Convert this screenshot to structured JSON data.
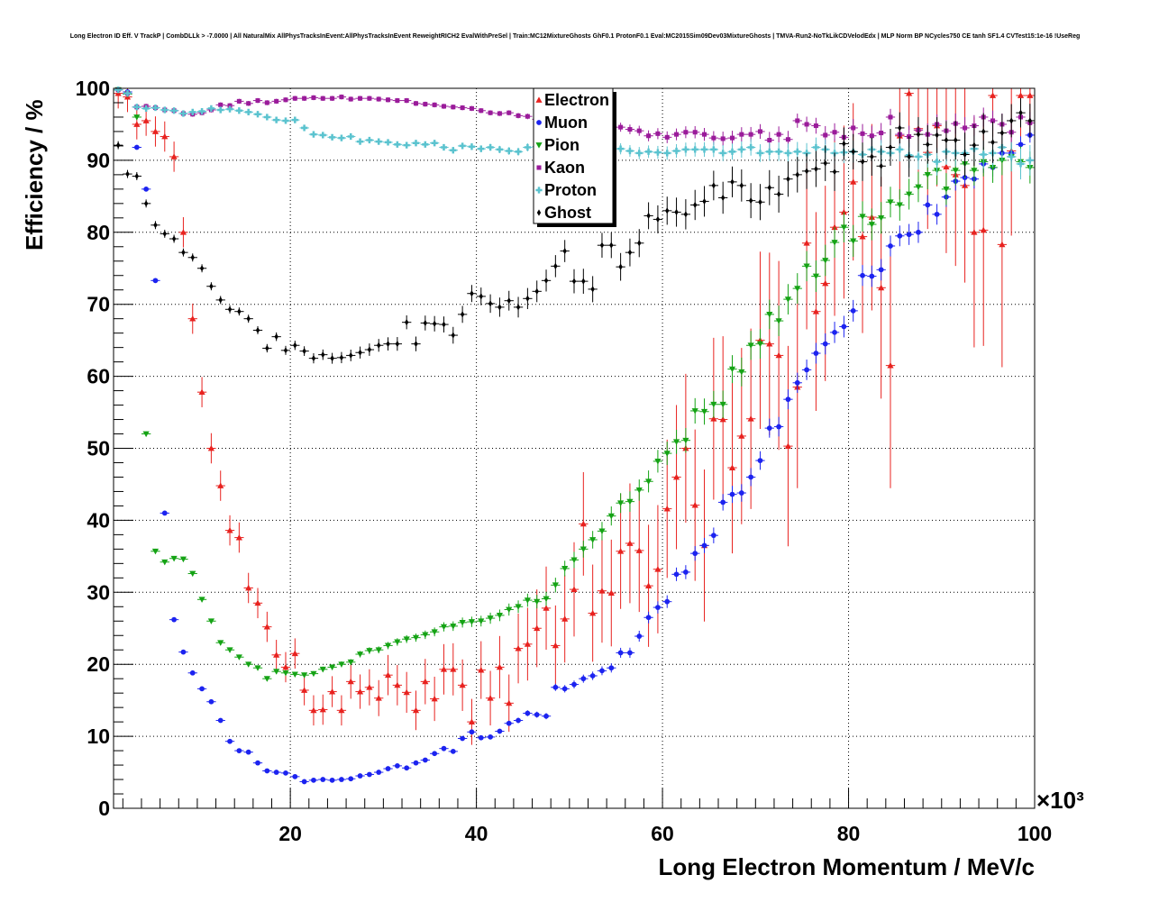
{
  "chart_data": {
    "type": "scatter",
    "title": "Long Electron ID Eff. V TrackP | CombDLLk > -7.0000 | All NaturalMix AllPhysTracksInEvent:AllPhysTracksInEvent ReweightRICH2 EvalWithPreSel | Train:MC12MixtureGhosts GhF0.1 ProtonF0.1 Eval:MC2015Sim09Dev03MixtureGhosts | TMVA-Run2-NoTkLikCDVelodEdx | MLP Norm BP NCycles750 CE tanh SF1.4 CVTest15:1e-16 !UseReg",
    "xlabel": "Long Electron Momentum / MeV/c",
    "ylabel": "Efficiency / %",
    "x_multiplier": "×10³",
    "xlim": [
      1000,
      100000
    ],
    "ylim": [
      0,
      100
    ],
    "x_ticks": [
      20,
      40,
      60,
      80,
      100
    ],
    "y_ticks": [
      0,
      10,
      20,
      30,
      40,
      50,
      60,
      70,
      80,
      90,
      100
    ],
    "grid": true,
    "legend_position": "top-center",
    "x": [
      1.5,
      2.5,
      3.5,
      4.5,
      5.5,
      6.5,
      7.5,
      8.5,
      9.5,
      10.5,
      11.5,
      12.5,
      13.5,
      14.5,
      15.5,
      16.5,
      17.5,
      18.5,
      19.5,
      20.5,
      21.5,
      22.5,
      23.5,
      24.5,
      25.5,
      26.5,
      27.5,
      28.5,
      29.5,
      30.5,
      31.5,
      32.5,
      33.5,
      34.5,
      35.5,
      36.5,
      37.5,
      38.5,
      39.5,
      40.5,
      41.5,
      42.5,
      43.5,
      44.5,
      45.5,
      46.5,
      47.5,
      48.5,
      49.5,
      50.5,
      51.5,
      52.5,
      53.5,
      54.5,
      55.5,
      56.5,
      57.5,
      58.5,
      59.5,
      60.5,
      61.5,
      62.5,
      63.5,
      64.5,
      65.5,
      66.5,
      67.5,
      68.5,
      69.5,
      70.5,
      71.5,
      72.5,
      73.5,
      74.5,
      75.5,
      76.5,
      77.5,
      78.5,
      79.5,
      80.5,
      81.5,
      82.5,
      83.5,
      84.5,
      85.5,
      86.5,
      87.5,
      88.5,
      89.5,
      90.5,
      91.5,
      92.5,
      93.5,
      94.5,
      95.5,
      96.5,
      97.5,
      98.5,
      99.5
    ],
    "series": [
      {
        "name": "Electron",
        "color": "#e8221f",
        "marker": "triangle-up",
        "values": [
          99.3,
          98.8,
          95.0,
          95.5,
          94.0,
          93.3,
          90.5,
          80.0,
          68.0,
          57.8,
          50.0,
          44.8,
          38.6,
          37.6,
          30.6,
          28.5,
          25.2,
          21.3,
          19.6,
          21.5,
          16.4,
          13.6,
          13.7,
          16.2,
          13.6,
          17.6,
          16.2,
          16.8,
          15.3,
          18.5,
          17.1,
          16.1,
          13.6,
          17.6,
          15.2,
          19.3,
          19.3,
          17.1,
          12.0,
          19.2,
          15.3,
          19.6,
          14.6,
          22.2,
          22.8,
          25.0,
          27.8,
          22.6,
          26.3,
          30.4,
          39.5,
          27.1,
          30.2,
          29.9,
          35.7,
          36.8,
          35.8,
          30.9,
          33.2,
          41.6,
          46.0,
          50.0,
          42.1,
          36.5,
          54.1,
          54.0,
          47.3,
          51.7,
          54.1,
          65.0,
          64.5,
          62.9,
          50.3,
          58.5,
          78.5,
          69.0,
          72.9,
          80.7,
          82.8,
          87.0,
          79.4,
          82.1,
          72.3,
          61.5,
          93.4,
          99.3,
          94.4,
          91.1,
          94.8,
          89.1,
          88.0,
          86.5,
          80.0,
          80.3,
          99.0,
          78.3,
          91.3,
          99.0,
          99.0
        ]
      },
      {
        "name": "Muon",
        "color": "#1c23f0",
        "marker": "circle",
        "values": [
          99.8,
          99.5,
          91.8,
          86.0,
          73.3,
          41.0,
          26.2,
          21.7,
          18.8,
          16.6,
          14.8,
          12.2,
          9.3,
          8.0,
          7.8,
          6.3,
          5.2,
          5.0,
          4.9,
          4.4,
          3.7,
          3.9,
          4.0,
          3.9,
          4.0,
          4.1,
          4.5,
          4.7,
          5.0,
          5.5,
          5.9,
          5.6,
          6.3,
          6.7,
          7.6,
          8.3,
          7.9,
          9.7,
          10.6,
          9.8,
          9.9,
          10.7,
          11.8,
          12.2,
          13.2,
          13.0,
          12.8,
          16.8,
          16.6,
          17.2,
          18.0,
          18.4,
          19.1,
          19.5,
          21.6,
          21.6,
          23.9,
          26.5,
          27.9,
          28.7,
          32.5,
          32.8,
          35.4,
          36.5,
          37.9,
          42.5,
          43.6,
          43.8,
          46.0,
          48.3,
          52.8,
          53.0,
          56.8,
          59.1,
          60.9,
          63.2,
          64.5,
          66.1,
          66.9,
          69.1,
          74.0,
          73.9,
          74.8,
          78.1,
          79.5,
          79.7,
          80.0,
          83.8,
          82.5,
          84.9,
          87.1,
          87.6,
          87.4,
          89.5,
          89.0,
          91.0,
          91.0,
          92.2,
          93.5
        ]
      },
      {
        "name": "Pion",
        "color": "#15a315",
        "marker": "triangle-down",
        "values": [
          99.8,
          99.2,
          96.0,
          52.0,
          35.7,
          34.2,
          34.7,
          34.6,
          32.6,
          29.0,
          26.0,
          23.0,
          22.0,
          21.0,
          20.0,
          19.5,
          18.0,
          19.0,
          18.8,
          18.6,
          18.5,
          18.7,
          19.3,
          19.6,
          20.0,
          20.3,
          21.4,
          21.9,
          22.0,
          22.6,
          23.1,
          23.5,
          23.7,
          24.1,
          24.5,
          25.2,
          25.3,
          25.8,
          25.9,
          26.0,
          26.4,
          26.8,
          27.6,
          28.0,
          28.9,
          28.7,
          29.1,
          31.0,
          33.3,
          34.5,
          36.0,
          37.3,
          38.5,
          40.6,
          42.4,
          42.6,
          44.2,
          45.4,
          48.2,
          49.3,
          50.9,
          51.1,
          55.2,
          55.1,
          56.1,
          56.1,
          61.0,
          60.6,
          64.3,
          64.5,
          68.6,
          67.7,
          70.7,
          72.2,
          75.3,
          73.9,
          76.1,
          78.6,
          80.7,
          78.8,
          82.2,
          81.1,
          82.0,
          84.2,
          83.8,
          85.3,
          86.3,
          88.0,
          88.6,
          86.0,
          88.6,
          89.5,
          88.6,
          89.8,
          89.0,
          90.0,
          90.5,
          89.8,
          89.0
        ]
      },
      {
        "name": "Kaon",
        "color": "#9a1b9a",
        "marker": "square",
        "values": [
          99.8,
          99.3,
          97.4,
          97.5,
          97.3,
          97.0,
          96.9,
          96.5,
          96.4,
          96.6,
          97.0,
          97.7,
          97.6,
          98.2,
          97.9,
          98.3,
          98.0,
          98.2,
          98.4,
          98.6,
          98.6,
          98.7,
          98.6,
          98.6,
          98.8,
          98.5,
          98.6,
          98.6,
          98.5,
          98.4,
          98.3,
          98.3,
          97.9,
          97.8,
          97.7,
          97.5,
          97.4,
          97.3,
          97.2,
          96.9,
          96.6,
          96.5,
          96.6,
          96.2,
          96.1,
          95.7,
          95.5,
          95.8,
          95.2,
          95.5,
          95.1,
          95.1,
          95.1,
          94.5,
          94.6,
          94.3,
          94.1,
          93.4,
          93.7,
          93.2,
          93.6,
          93.9,
          93.9,
          93.6,
          93.1,
          93.0,
          93.1,
          93.6,
          93.6,
          94.0,
          92.8,
          93.6,
          92.9,
          95.5,
          95.0,
          94.8,
          93.5,
          93.9,
          93.2,
          94.5,
          93.7,
          93.4,
          93.8,
          96.0,
          93.6,
          93.3,
          94.2,
          93.6,
          95.0,
          94.1,
          95.1,
          94.5,
          94.8,
          96.0,
          95.5,
          95.0,
          93.9,
          96.0,
          95.2
        ]
      },
      {
        "name": "Proton",
        "color": "#5bc3cf",
        "marker": "cross",
        "values": [
          99.8,
          99.3,
          97.4,
          97.2,
          97.3,
          97.0,
          96.9,
          96.5,
          96.7,
          96.8,
          97.2,
          97.0,
          97.1,
          96.9,
          96.7,
          96.4,
          96.0,
          95.6,
          95.5,
          95.6,
          94.5,
          93.6,
          93.5,
          93.2,
          93.1,
          93.3,
          92.6,
          92.8,
          92.6,
          92.5,
          92.2,
          92.1,
          92.4,
          92.2,
          92.4,
          91.8,
          91.4,
          92.0,
          91.9,
          91.6,
          91.8,
          91.5,
          91.3,
          91.2,
          91.8,
          91.9,
          92.0,
          91.6,
          91.6,
          91.8,
          91.8,
          92.0,
          91.8,
          91.5,
          91.6,
          91.3,
          91.0,
          91.2,
          91.1,
          91.0,
          91.3,
          91.5,
          91.5,
          91.5,
          91.5,
          91.0,
          91.2,
          91.5,
          91.8,
          91.0,
          91.2,
          91.2,
          91.0,
          91.2,
          91.0,
          91.8,
          91.5,
          91.0,
          91.1,
          91.2,
          90.8,
          91.5,
          91.2,
          91.0,
          91.5,
          90.7,
          90.5,
          90.8,
          89.8,
          91.2,
          91.0,
          91.0,
          91.6,
          90.8,
          91.0,
          91.8,
          90.5,
          89.5,
          90.0
        ]
      },
      {
        "name": "Ghost",
        "color": "#000000",
        "marker": "diamond",
        "values": [
          92.1,
          88.1,
          87.8,
          84.0,
          81.0,
          79.8,
          79.1,
          77.2,
          76.5,
          75.0,
          72.5,
          70.6,
          69.3,
          69.0,
          68.0,
          66.4,
          63.9,
          65.5,
          63.6,
          64.3,
          63.5,
          62.5,
          63.0,
          62.5,
          62.6,
          62.9,
          63.3,
          63.7,
          64.3,
          64.5,
          64.5,
          67.5,
          64.5,
          67.4,
          67.3,
          67.2,
          65.7,
          68.6,
          71.5,
          71.1,
          70.1,
          69.6,
          70.5,
          69.6,
          70.8,
          71.8,
          73.3,
          75.3,
          77.4,
          73.2,
          73.2,
          72.1,
          78.2,
          78.2,
          75.2,
          77.2,
          78.5,
          82.3,
          81.8,
          83.0,
          82.8,
          82.5,
          83.8,
          84.3,
          86.5,
          84.8,
          87.0,
          86.5,
          84.4,
          84.2,
          86.2,
          85.3,
          87.4,
          88.0,
          88.5,
          88.8,
          89.6,
          88.4,
          92.3,
          91.2,
          89.8,
          90.5,
          89.2,
          91.8,
          94.5,
          90.5,
          93.6,
          92.2,
          93.5,
          92.8,
          92.8,
          90.8,
          92.1,
          94.0,
          92.5,
          93.8,
          95.5,
          96.6,
          95.5
        ]
      }
    ]
  }
}
